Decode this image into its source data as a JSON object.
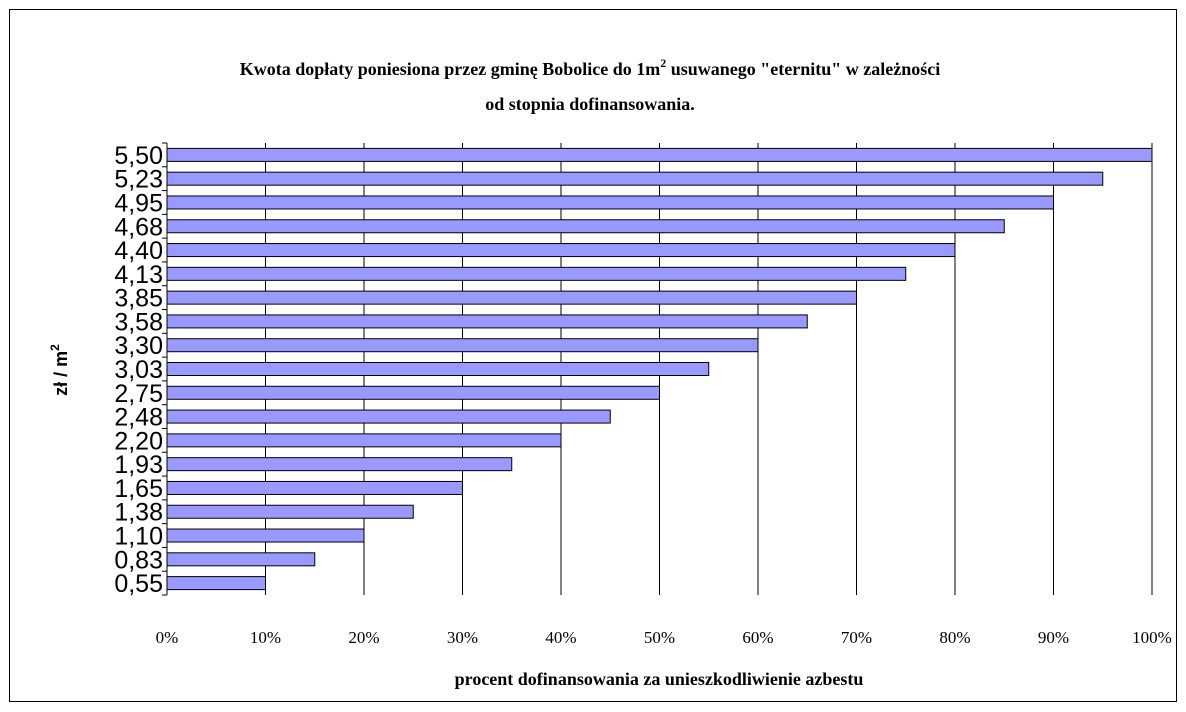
{
  "chart_data": {
    "type": "bar",
    "orientation": "horizontal",
    "title_line1": "Kwota dopłaty poniesiona przez gminę Bobolice do 1m",
    "title_sup": "2",
    "title_line1_end": " usuwanego \"eternitu\" w zależności",
    "title_line2": "od stopnia dofinansowania.",
    "xlabel": "procent dofinansowania za unieszkodliwienie azbestu",
    "ylabel": "zł / m",
    "ylabel_sup": "2",
    "xlim": [
      0,
      100
    ],
    "x_ticks": [
      "0%",
      "10%",
      "20%",
      "30%",
      "40%",
      "50%",
      "60%",
      "70%",
      "80%",
      "90%",
      "100%"
    ],
    "grid": "vertical",
    "bar_color": "#9999FF",
    "categories": [
      "5,50",
      "5,23",
      "4,95",
      "4,68",
      "4,40",
      "4,13",
      "3,85",
      "3,58",
      "3,30",
      "3,03",
      "2,75",
      "2,48",
      "2,20",
      "1,93",
      "1,65",
      "1,38",
      "1,10",
      "0,83",
      "0,55"
    ],
    "values": [
      100,
      95,
      90,
      85,
      80,
      75,
      70,
      65,
      60,
      55,
      50,
      45,
      40,
      35,
      30,
      25,
      20,
      15,
      10
    ]
  }
}
